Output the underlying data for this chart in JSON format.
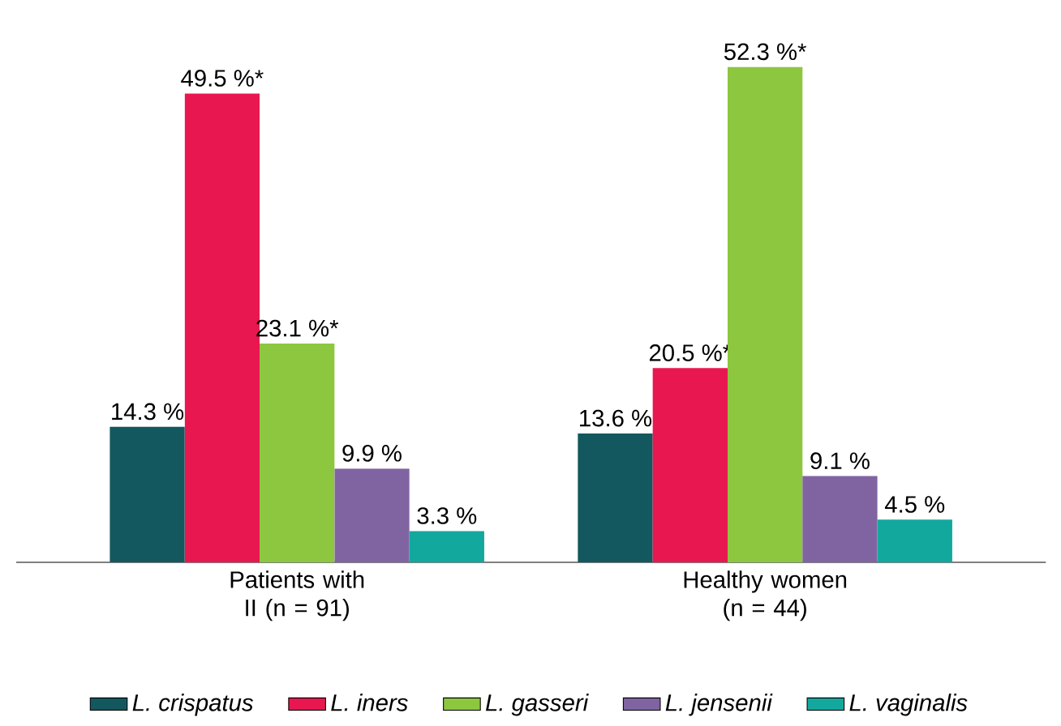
{
  "chart_data": {
    "type": "bar",
    "categories": [
      "Patients with II (n = 91)",
      "Healthy women (n = 44)"
    ],
    "series": [
      {
        "name": "L. crispatus",
        "color": "#13585e",
        "values": [
          14.3,
          13.6
        ],
        "value_labels": [
          "14.3 %",
          "13.6 %"
        ]
      },
      {
        "name": "L. iners",
        "color": "#e8174f",
        "values": [
          49.5,
          20.5
        ],
        "value_labels": [
          "49.5 %*",
          "20.5 %*"
        ]
      },
      {
        "name": "L. gasseri",
        "color": "#8dc63f",
        "values": [
          23.1,
          52.3
        ],
        "value_labels": [
          "23.1 %*",
          "52.3 %*"
        ]
      },
      {
        "name": "L. jensenii",
        "color": "#8064a2",
        "values": [
          9.9,
          9.1
        ],
        "value_labels": [
          "9.9 %",
          "9.1 %"
        ]
      },
      {
        "name": "L. vaginalis",
        "color": "#13a89e",
        "values": [
          3.3,
          4.5
        ],
        "value_labels": [
          "3.3 %",
          "4.5 %"
        ]
      }
    ],
    "legend": "bottom"
  }
}
